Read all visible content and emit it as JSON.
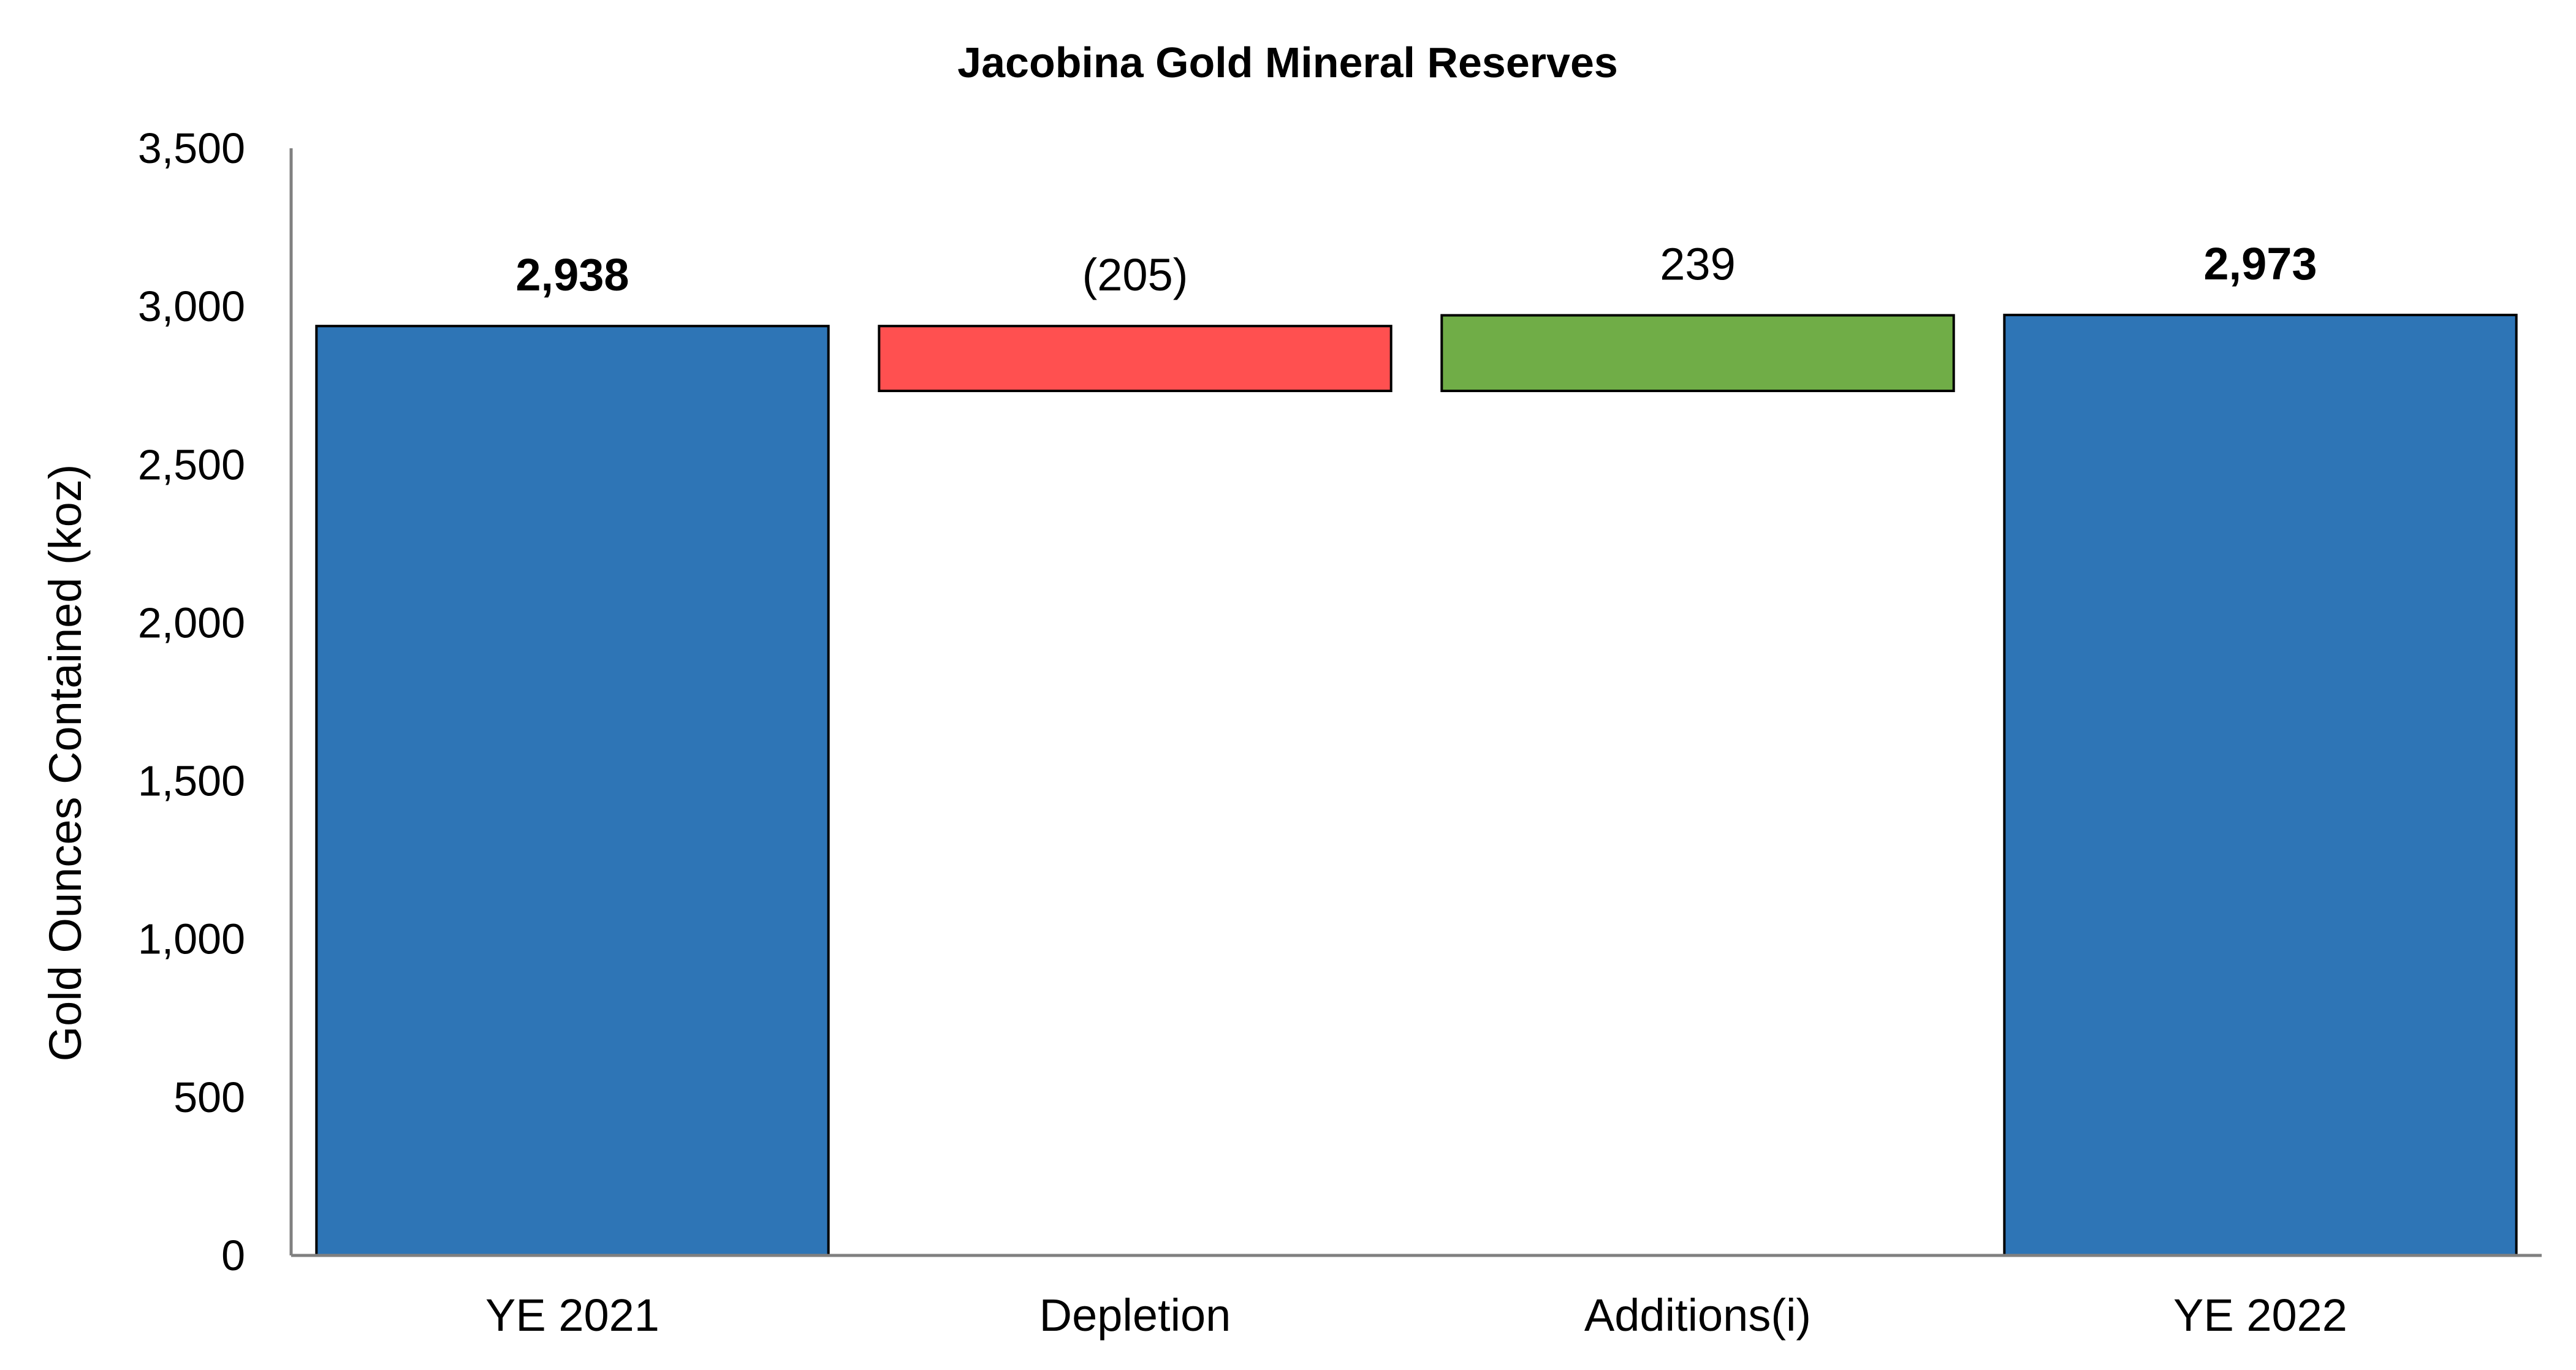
{
  "chart_data": {
    "type": "bar",
    "subtype": "waterfall",
    "title": "Jacobina Gold Mineral Reserves",
    "xlabel": "",
    "ylabel": "Gold Ounces Contained (koz)",
    "ylim": [
      0,
      3500
    ],
    "yticks": [
      0,
      500,
      1000,
      1500,
      2000,
      2500,
      3000,
      3500
    ],
    "ytick_labels": [
      "0",
      "500",
      "1,000",
      "1,500",
      "2,000",
      "2,500",
      "3,000",
      "3,500"
    ],
    "grid": false,
    "legend": "none",
    "categories": [
      "YE 2021",
      "Depletion",
      "Additions(i)",
      "YE 2022"
    ],
    "bars": [
      {
        "category": "YE 2021",
        "kind": "total",
        "start": 0,
        "end": 2938,
        "label": "2,938",
        "bold": true,
        "color": "#2E75B6"
      },
      {
        "category": "Depletion",
        "kind": "decrease",
        "start": 2938,
        "end": 2733,
        "label": "(205)",
        "bold": false,
        "color": "#FF5050"
      },
      {
        "category": "Additions(i)",
        "kind": "increase",
        "start": 2733,
        "end": 2972,
        "label": "239",
        "bold": false,
        "color": "#70AD47"
      },
      {
        "category": "YE 2022",
        "kind": "total",
        "start": 0,
        "end": 2973,
        "label": "2,973",
        "bold": true,
        "color": "#2E75B6"
      }
    ]
  }
}
